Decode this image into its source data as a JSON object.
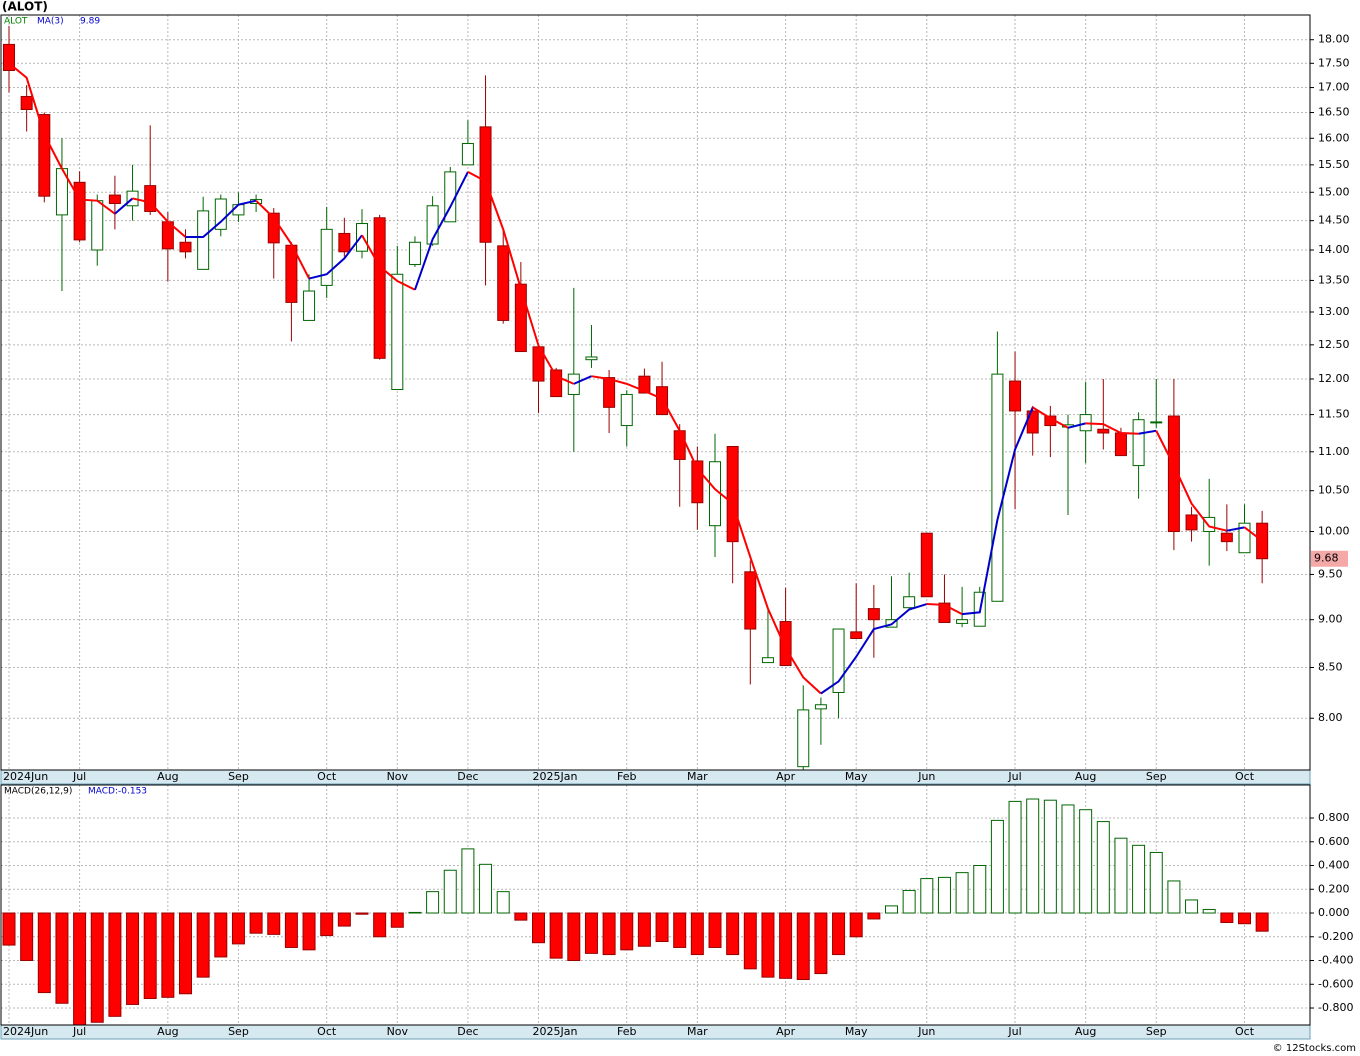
{
  "chart_data": [
    {
      "type": "candlestick",
      "title": "(ALOT)",
      "symbol": "ALOT",
      "symbol_color": "#008000",
      "categories": [
        "2024Jun",
        null,
        null,
        null,
        "Jul",
        null,
        null,
        null,
        null,
        "Aug",
        null,
        null,
        null,
        "Sep",
        null,
        null,
        null,
        null,
        "Oct",
        null,
        null,
        null,
        "Nov",
        null,
        null,
        null,
        "Dec",
        null,
        null,
        null,
        "2025Jan",
        null,
        null,
        null,
        null,
        "Feb",
        null,
        null,
        null,
        "Mar",
        null,
        null,
        null,
        null,
        "Apr",
        null,
        null,
        null,
        "May",
        null,
        null,
        null,
        "Jun",
        null,
        null,
        null,
        null,
        "Jul",
        null,
        null,
        null,
        "Aug",
        null,
        null,
        null,
        "Sep",
        null,
        null,
        null,
        null,
        "Oct",
        null
      ],
      "open": [
        17.9,
        16.82,
        16.46,
        14.6,
        15.18,
        14.0,
        14.95,
        14.76,
        15.12,
        14.48,
        14.13,
        13.68,
        14.35,
        14.6,
        14.8,
        14.63,
        14.08,
        12.87,
        13.42,
        14.28,
        13.98,
        14.55,
        11.85,
        13.76,
        14.1,
        14.48,
        15.5,
        16.22,
        14.07,
        13.44,
        12.47,
        12.13,
        11.78,
        12.28,
        12.02,
        11.35,
        12.04,
        11.89,
        11.28,
        10.88,
        10.07,
        11.07,
        9.53,
        8.55,
        8.98,
        7.55,
        8.09,
        8.25,
        8.87,
        9.12,
        8.92,
        9.13,
        9.98,
        9.18,
        8.96,
        8.93,
        9.2,
        11.97,
        11.55,
        11.48,
        11.33,
        11.28,
        11.3,
        11.25,
        10.82,
        11.4,
        11.48,
        10.2,
        10.0,
        9.98,
        9.75,
        10.1
      ],
      "high": [
        18.3,
        17.05,
        16.5,
        16.0,
        15.38,
        14.96,
        15.3,
        15.5,
        16.25,
        14.65,
        14.35,
        14.92,
        14.96,
        15.0,
        14.96,
        14.72,
        14.13,
        13.6,
        14.74,
        14.55,
        14.7,
        14.6,
        14.07,
        14.23,
        14.93,
        15.46,
        16.35,
        17.25,
        14.35,
        13.8,
        12.47,
        12.16,
        13.38,
        12.8,
        12.13,
        11.84,
        12.15,
        12.25,
        11.37,
        11.07,
        11.24,
        11.07,
        9.66,
        9.12,
        9.35,
        8.32,
        8.2,
        8.9,
        9.4,
        9.38,
        9.48,
        9.52,
        9.98,
        9.5,
        9.36,
        9.36,
        12.7,
        12.4,
        11.62,
        11.62,
        11.5,
        11.96,
        12.0,
        11.32,
        11.53,
        12.0,
        12.0,
        10.3,
        10.65,
        10.33,
        10.33,
        10.25
      ],
      "low": [
        16.9,
        16.13,
        14.82,
        13.33,
        14.13,
        13.74,
        14.35,
        14.5,
        14.6,
        13.48,
        13.86,
        13.68,
        14.23,
        14.48,
        14.65,
        13.53,
        12.55,
        12.87,
        13.22,
        13.89,
        13.86,
        12.28,
        11.85,
        13.72,
        14.07,
        14.48,
        15.5,
        13.42,
        12.82,
        12.4,
        11.52,
        11.75,
        11.0,
        12.16,
        11.25,
        11.07,
        11.8,
        11.5,
        10.3,
        10.02,
        9.7,
        9.4,
        8.33,
        8.55,
        8.52,
        7.45,
        7.75,
        8.0,
        8.8,
        8.6,
        8.92,
        9.1,
        9.25,
        8.97,
        8.92,
        8.93,
        9.2,
        10.27,
        10.95,
        10.93,
        10.2,
        10.85,
        11.03,
        10.95,
        10.4,
        11.32,
        9.78,
        9.88,
        9.6,
        9.77,
        9.75,
        9.4
      ],
      "close": [
        17.35,
        16.56,
        14.93,
        15.43,
        14.17,
        14.85,
        14.8,
        15.02,
        14.66,
        14.02,
        13.97,
        14.67,
        14.88,
        14.78,
        14.87,
        14.12,
        13.15,
        13.33,
        14.35,
        13.97,
        14.45,
        12.3,
        13.6,
        14.13,
        14.76,
        15.37,
        15.9,
        14.13,
        12.87,
        12.4,
        11.97,
        11.75,
        12.07,
        12.32,
        11.6,
        11.78,
        11.8,
        11.5,
        10.9,
        10.35,
        10.87,
        9.88,
        8.9,
        8.6,
        8.52,
        8.08,
        8.13,
        8.9,
        8.8,
        9.0,
        9.0,
        9.25,
        9.25,
        8.97,
        9.0,
        9.3,
        12.07,
        11.55,
        11.25,
        11.35,
        11.36,
        11.5,
        11.25,
        10.95,
        11.43,
        11.4,
        10.0,
        10.02,
        10.17,
        9.88,
        10.1,
        9.68
      ],
      "up_color": "#006600",
      "down_color": "#ff0000",
      "price_label_color": "#f4a8a8",
      "ma": {
        "name": "MA(3)",
        "up_color": "#0000cc",
        "down_color": "#ff0000",
        "values": [
          17.5,
          17.2,
          16.07,
          15.43,
          14.87,
          14.85,
          14.62,
          14.89,
          14.82,
          14.48,
          14.22,
          14.22,
          14.48,
          14.78,
          14.85,
          14.55,
          14.1,
          13.53,
          13.6,
          13.86,
          14.25,
          13.73,
          13.49,
          13.35,
          14.18,
          14.74,
          15.37,
          15.2,
          14.35,
          13.37,
          12.49,
          12.04,
          11.93,
          12.04,
          12.0,
          11.93,
          11.83,
          11.72,
          11.28,
          10.78,
          10.52,
          10.34,
          9.7,
          9.12,
          8.7,
          8.4,
          8.24,
          8.36,
          8.61,
          8.9,
          8.95,
          9.11,
          9.17,
          9.16,
          9.06,
          9.08,
          10.14,
          11.03,
          11.6,
          11.45,
          11.32,
          11.38,
          11.37,
          11.25,
          11.24,
          11.28,
          10.82,
          10.34,
          10.06,
          10.01,
          10.05,
          9.89
        ]
      },
      "ylim": [
        7.52,
        18.54
      ],
      "log_scale": true,
      "grid": true,
      "yticks": [
        {
          "value": 8,
          "label": "8.00"
        },
        {
          "value": 8.5,
          "label": "8.50"
        },
        {
          "value": 9,
          "label": "9.00"
        },
        {
          "value": 9.5,
          "label": "9.50"
        },
        {
          "value": 10,
          "label": "10.00"
        },
        {
          "value": 10.5,
          "label": "10.50"
        },
        {
          "value": 11,
          "label": "11.00"
        },
        {
          "value": 11.5,
          "label": "11.50"
        },
        {
          "value": 12,
          "label": "12.00"
        },
        {
          "value": 12.5,
          "label": "12.50"
        },
        {
          "value": 13,
          "label": "13.00"
        },
        {
          "value": 13.5,
          "label": "13.50"
        },
        {
          "value": 14,
          "label": "14.00"
        },
        {
          "value": 14.5,
          "label": "14.50"
        },
        {
          "value": 15,
          "label": "15.00"
        },
        {
          "value": 15.5,
          "label": "15.50"
        },
        {
          "value": 16,
          "label": "16.00"
        },
        {
          "value": 16.5,
          "label": "16.50"
        },
        {
          "value": 17,
          "label": "17.00"
        },
        {
          "value": 17.5,
          "label": "17.50"
        },
        {
          "value": 18,
          "label": "18.00"
        }
      ]
    },
    {
      "type": "bar",
      "legend": [
        "MACD(26,12,9)",
        "MACD:-0.153"
      ],
      "legend_colors": [
        "#000000",
        "#0000cc"
      ],
      "categories": [
        "2024Jun",
        null,
        null,
        null,
        "Jul",
        null,
        null,
        null,
        null,
        "Aug",
        null,
        null,
        null,
        "Sep",
        null,
        null,
        null,
        null,
        "Oct",
        null,
        null,
        null,
        "Nov",
        null,
        null,
        null,
        "Dec",
        null,
        null,
        null,
        "2025Jan",
        null,
        null,
        null,
        null,
        "Feb",
        null,
        null,
        null,
        "Mar",
        null,
        null,
        null,
        null,
        "Apr",
        null,
        null,
        null,
        "May",
        null,
        null,
        null,
        "Jun",
        null,
        null,
        null,
        null,
        "Jul",
        null,
        null,
        null,
        "Aug",
        null,
        null,
        null,
        "Sep",
        null,
        null,
        null,
        null,
        "Oct",
        null
      ],
      "values": [
        -0.27,
        -0.4,
        -0.67,
        -0.76,
        -0.95,
        -0.92,
        -0.87,
        -0.77,
        -0.72,
        -0.71,
        -0.68,
        -0.54,
        -0.37,
        -0.26,
        -0.17,
        -0.18,
        -0.29,
        -0.31,
        -0.19,
        -0.11,
        -0.01,
        -0.2,
        -0.12,
        0.005,
        0.18,
        0.36,
        0.54,
        0.41,
        0.18,
        -0.06,
        -0.25,
        -0.38,
        -0.4,
        -0.34,
        -0.35,
        -0.31,
        -0.28,
        -0.24,
        -0.29,
        -0.35,
        -0.29,
        -0.35,
        -0.47,
        -0.54,
        -0.55,
        -0.56,
        -0.51,
        -0.35,
        -0.2,
        -0.05,
        0.06,
        0.19,
        0.29,
        0.3,
        0.34,
        0.4,
        0.78,
        0.94,
        0.96,
        0.95,
        0.91,
        0.87,
        0.77,
        0.63,
        0.57,
        0.51,
        0.27,
        0.11,
        0.03,
        -0.08,
        -0.09,
        -0.153
      ],
      "positive_color": "#006600",
      "negative_color": "#ff0000",
      "ylim": [
        -0.943,
        1.078
      ],
      "grid": true,
      "yticks": [
        {
          "value": -0.8,
          "label": "-0.800"
        },
        {
          "value": -0.6,
          "label": "-0.600"
        },
        {
          "value": -0.4,
          "label": "-0.400"
        },
        {
          "value": -0.2,
          "label": "-0.200"
        },
        {
          "value": 0,
          "label": "0.000"
        },
        {
          "value": 0.2,
          "label": "0.200"
        },
        {
          "value": 0.4,
          "label": "0.400"
        },
        {
          "value": 0.6,
          "label": "0.600"
        },
        {
          "value": 0.8,
          "label": "0.800"
        }
      ]
    }
  ],
  "footer": "© 12Stocks.com"
}
